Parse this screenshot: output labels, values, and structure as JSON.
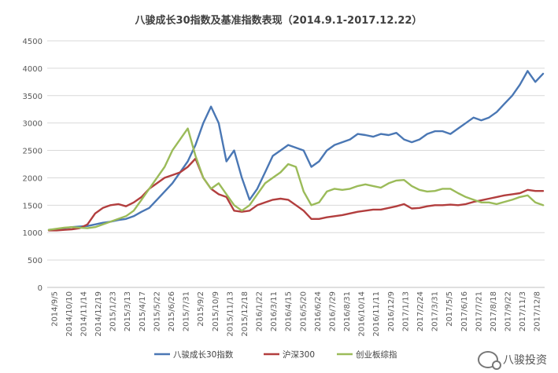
{
  "chart_data": {
    "type": "line",
    "title": "八骏成长30指数及基准指数表现（2014.9.1-2017.12.22）",
    "ylim": [
      0,
      4500
    ],
    "y_ticks": [
      0,
      500,
      1000,
      1500,
      2000,
      2500,
      3000,
      3500,
      4000,
      4500
    ],
    "x_tick_labels": [
      "2014/9/5",
      "2014/10/10",
      "2014/11/14",
      "2014/12/19",
      "2015/1/23",
      "2015/3/13",
      "2015/4/17",
      "2015/5/22",
      "2015/6/26",
      "2015/7/31",
      "2015/9/2",
      "2015/10/9",
      "2015/11/13",
      "2015/12/18",
      "2016/1/22",
      "2016/3/11",
      "2016/4/15",
      "2016/5/20",
      "2016/6/24",
      "2016/7/29",
      "2016/8/31",
      "2016/10/14",
      "2016/11/11",
      "2016/12/9",
      "2017/1/13",
      "2017/2/24",
      "2017/3/31",
      "2017/5/5",
      "2017/6/16",
      "2017/7/21",
      "2017/8/18",
      "2017/9/22",
      "2017/11/3",
      "2017/12/8"
    ],
    "grid": true,
    "legend": "bottom",
    "series": [
      {
        "name": "八骏成长30指数",
        "color": "#4A77B4",
        "values": [
          1050,
          1060,
          1080,
          1100,
          1110,
          1120,
          1150,
          1180,
          1200,
          1230,
          1250,
          1300,
          1380,
          1450,
          1600,
          1750,
          1900,
          2100,
          2300,
          2600,
          3000,
          3300,
          3000,
          2300,
          2500,
          2000,
          1600,
          1800,
          2100,
          2400,
          2500,
          2600,
          2550,
          2500,
          2200,
          2300,
          2500,
          2600,
          2650,
          2700,
          2800,
          2780,
          2750,
          2800,
          2780,
          2820,
          2700,
          2650,
          2700,
          2800,
          2850,
          2850,
          2800,
          2900,
          3000,
          3100,
          3050,
          3100,
          3200,
          3350,
          3500,
          3700,
          3950,
          3750,
          3900
        ]
      },
      {
        "name": "沪深300",
        "color": "#B23E3E",
        "values": [
          1040,
          1040,
          1050,
          1060,
          1080,
          1150,
          1350,
          1450,
          1500,
          1520,
          1480,
          1550,
          1650,
          1800,
          1900,
          2000,
          2050,
          2100,
          2200,
          2350,
          2000,
          1800,
          1700,
          1650,
          1400,
          1380,
          1400,
          1500,
          1550,
          1600,
          1620,
          1600,
          1500,
          1400,
          1250,
          1250,
          1280,
          1300,
          1320,
          1350,
          1380,
          1400,
          1420,
          1420,
          1450,
          1480,
          1520,
          1440,
          1450,
          1480,
          1500,
          1500,
          1510,
          1500,
          1520,
          1560,
          1590,
          1620,
          1650,
          1680,
          1700,
          1720,
          1780,
          1760,
          1760
        ]
      },
      {
        "name": "创业板综指",
        "color": "#9BBB59",
        "values": [
          1050,
          1070,
          1090,
          1100,
          1090,
          1080,
          1100,
          1150,
          1200,
          1250,
          1300,
          1400,
          1600,
          1800,
          2000,
          2200,
          2500,
          2700,
          2900,
          2400,
          2000,
          1800,
          1900,
          1700,
          1500,
          1400,
          1500,
          1700,
          1900,
          2000,
          2100,
          2250,
          2200,
          1750,
          1500,
          1550,
          1750,
          1800,
          1780,
          1800,
          1850,
          1880,
          1850,
          1820,
          1900,
          1950,
          1960,
          1850,
          1780,
          1750,
          1760,
          1800,
          1800,
          1720,
          1650,
          1600,
          1550,
          1550,
          1520,
          1560,
          1600,
          1650,
          1680,
          1550,
          1500
        ]
      }
    ]
  },
  "watermark": {
    "text": "八骏投资"
  }
}
